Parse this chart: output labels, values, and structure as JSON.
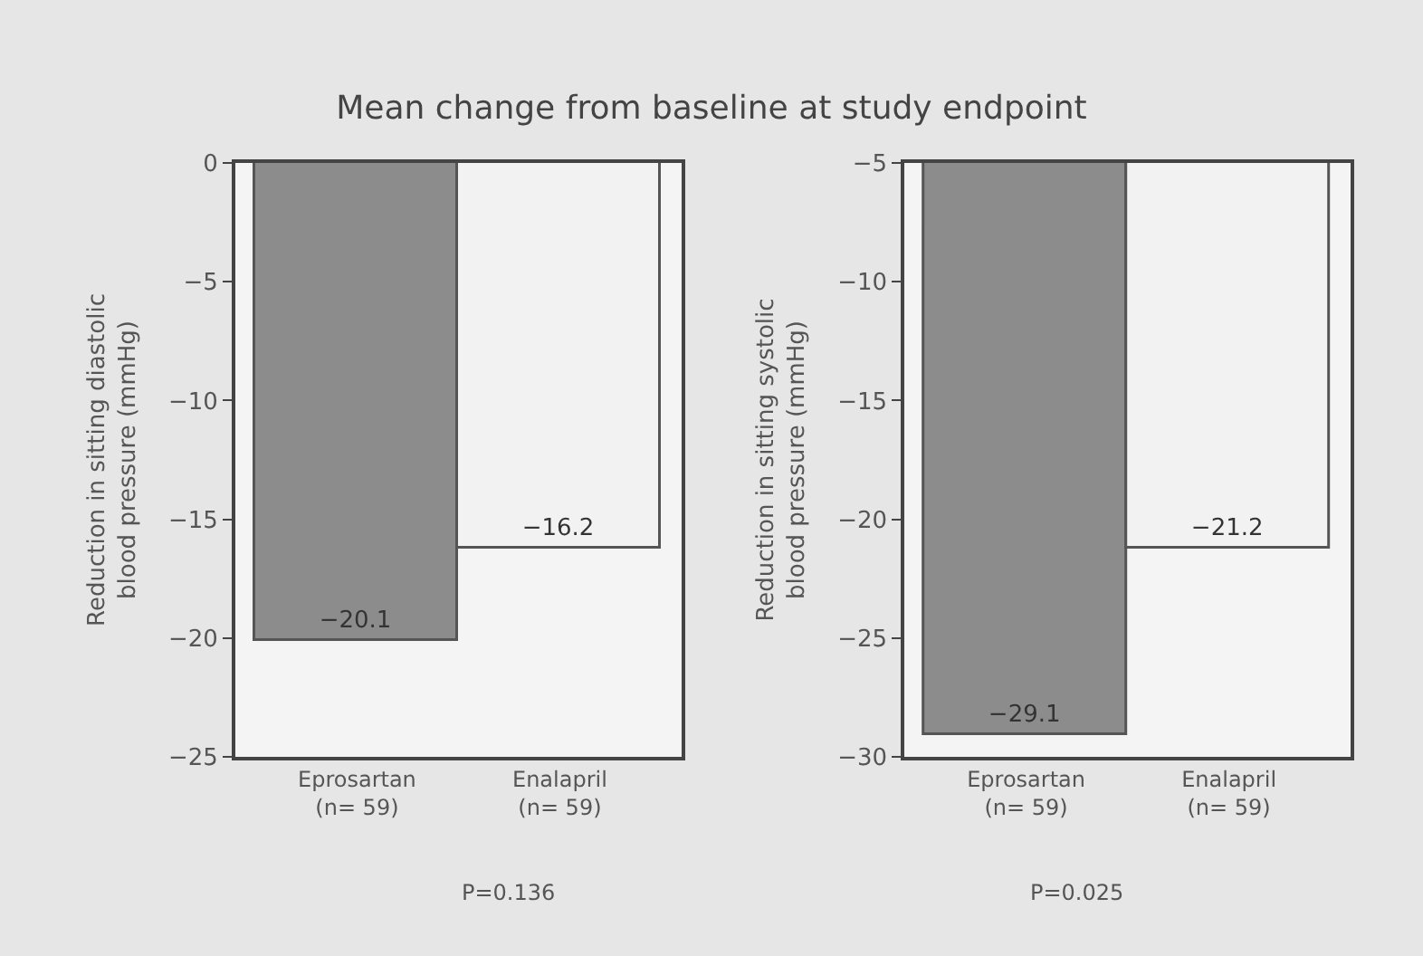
{
  "chart_data": [
    {
      "type": "bar",
      "title": "Mean change from baseline at study endpoint",
      "ylabel": "Reduction in sitting diastolic\nblood pressure (mmHg)",
      "categories": [
        "Eprosartan\n(n= 59)",
        "Enalapril\n(n= 59)"
      ],
      "values": [
        -20.1,
        -16.2
      ],
      "colors": [
        "#8c8c8c",
        "#f2f2f2"
      ],
      "ylim": [
        -25,
        0
      ],
      "yticks": [
        0,
        -5,
        -10,
        -15,
        -20,
        -25
      ],
      "data_labels": true,
      "annotations": [
        "P=0.136"
      ],
      "grid": false
    },
    {
      "type": "bar",
      "ylabel": "Reduction in sitting systolic\nblood pressure (mmHg)",
      "categories": [
        "Eprosartan\n(n= 59)",
        "Enalapril\n(n= 59)"
      ],
      "values": [
        -29.1,
        -21.2
      ],
      "colors": [
        "#8c8c8c",
        "#f2f2f2"
      ],
      "ylim": [
        -30,
        -5
      ],
      "yticks": [
        -5,
        -10,
        -15,
        -20,
        -25,
        -30
      ],
      "data_labels": true,
      "annotations": [
        "P=0.025"
      ],
      "grid": false
    }
  ]
}
